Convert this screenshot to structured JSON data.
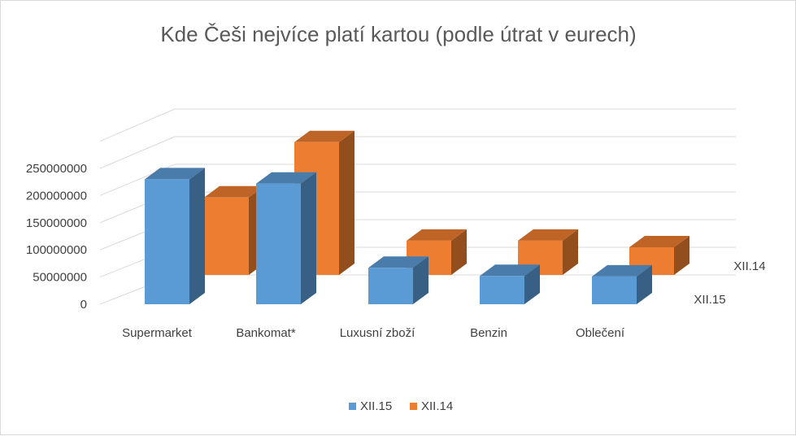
{
  "chart_data": {
    "type": "bar",
    "title": "Kde Češi nejvíce platí kartou (podle útrat v eurech)",
    "categories": [
      "Supermarket",
      "Bankomat*",
      "Luxusní zboží",
      "Benzin",
      "Oblečení"
    ],
    "series": [
      {
        "name": "XII.15",
        "values": [
          230000000,
          222000000,
          67000000,
          52000000,
          51000000
        ],
        "color": "#5b9bd5"
      },
      {
        "name": "XII.14",
        "values": [
          140000000,
          240000000,
          62000000,
          62000000,
          50000000
        ],
        "color": "#ed7d31"
      }
    ],
    "yticks": [
      "0",
      "50000000",
      "100000000",
      "150000000",
      "200000000",
      "250000000"
    ],
    "ylim": [
      0,
      300000000
    ],
    "grid": true,
    "legend_position": "bottom",
    "style": "3d-column"
  }
}
